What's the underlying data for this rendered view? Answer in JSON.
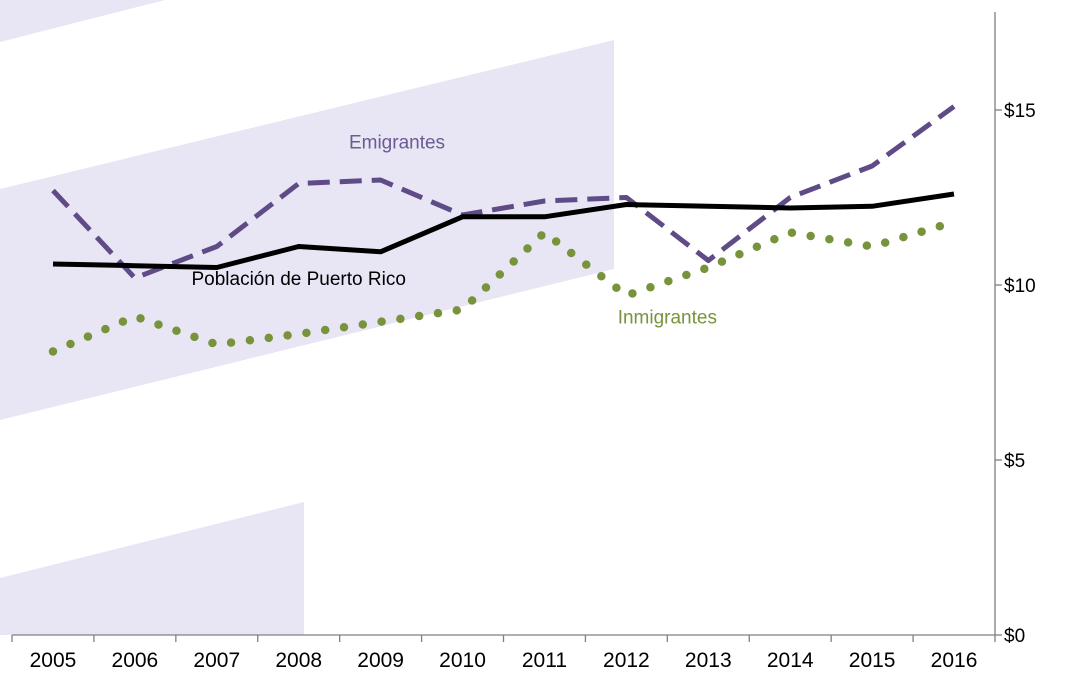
{
  "chart_data": {
    "type": "line",
    "title": "",
    "xlabel": "",
    "ylabel": "",
    "x": [
      "2005",
      "2006",
      "2007",
      "2008",
      "2009",
      "2010",
      "2011",
      "2012",
      "2013",
      "2014",
      "2015",
      "2016"
    ],
    "ylim": [
      0,
      17.8
    ],
    "yticks": [
      {
        "value": 0,
        "label": "$0"
      },
      {
        "value": 5,
        "label": "$5"
      },
      {
        "value": 10,
        "label": "$10"
      },
      {
        "value": 15,
        "label": "$15"
      }
    ],
    "y_axis_side": "right",
    "grid": false,
    "series": [
      {
        "name": "Emigrantes",
        "style": "dashed",
        "color": "#5f4b86",
        "values": [
          12.7,
          10.2,
          11.1,
          12.9,
          13.0,
          12.0,
          12.4,
          12.5,
          10.7,
          12.5,
          13.4,
          15.1
        ]
      },
      {
        "name": "Población de Puerto Rico",
        "style": "solid",
        "color": "#000000",
        "values": [
          10.6,
          10.55,
          10.5,
          11.1,
          10.95,
          11.95,
          11.95,
          12.3,
          12.25,
          12.2,
          12.25,
          12.6
        ]
      },
      {
        "name": "Inmigrantes",
        "style": "dotted",
        "color": "#77933c",
        "values": [
          8.1,
          9.1,
          8.3,
          8.6,
          8.95,
          9.3,
          11.5,
          9.7,
          10.5,
          11.5,
          11.1,
          11.8
        ]
      }
    ],
    "annotations": [
      {
        "text": "Emigrantes",
        "series": "Emigrantes",
        "x": 4.2,
        "y": 13.9,
        "color": "#6b5a94"
      },
      {
        "text": "Población de Puerto Rico",
        "series": "Población de Puerto Rico",
        "x": 3.0,
        "y": 10.0,
        "color": "#000000"
      },
      {
        "text": "Inmigrantes",
        "series": "Inmigrantes",
        "x": 7.5,
        "y": 8.9,
        "color": "#77933c"
      }
    ]
  }
}
